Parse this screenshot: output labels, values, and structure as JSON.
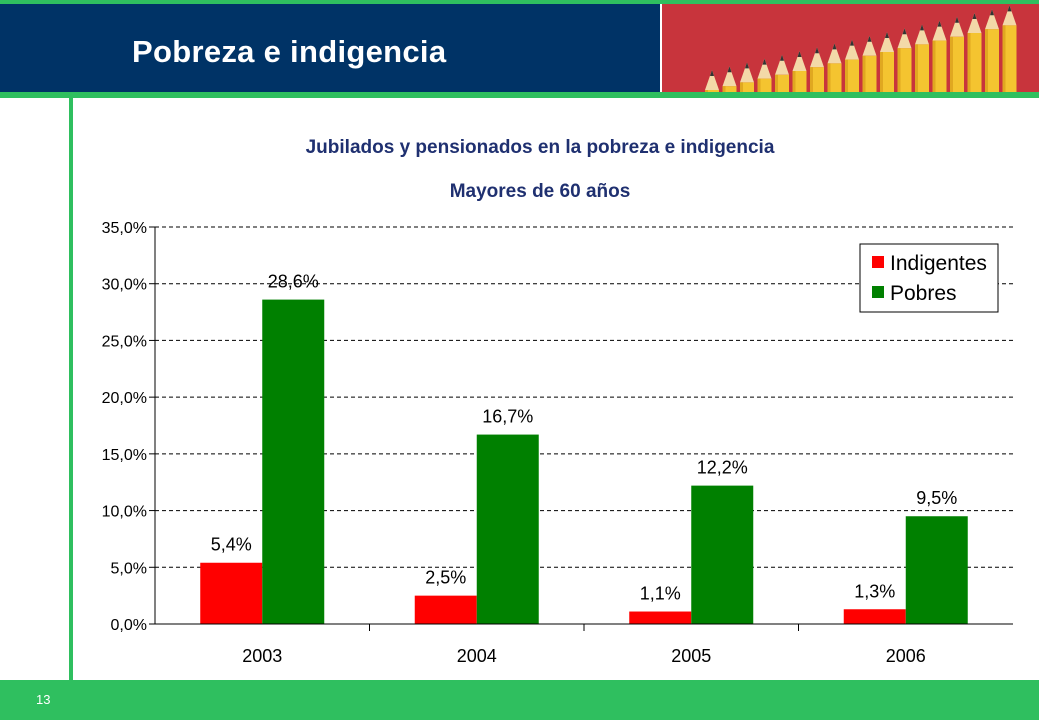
{
  "slide": {
    "title": "Pobreza e indigencia",
    "page_number": "13",
    "colors": {
      "navy": "#003366",
      "green_accent": "#2fbf5f",
      "photo_red": "#c8343c",
      "pencil": "#f4c430"
    }
  },
  "chart_data": {
    "type": "bar",
    "title": "Jubilados y pensionados en la pobreza e indigencia",
    "subtitle": "Mayores de 60 años",
    "categories": [
      "2003",
      "2004",
      "2005",
      "2006"
    ],
    "series": [
      {
        "name": "Indigentes",
        "color": "#ff0000",
        "values": [
          5.4,
          2.5,
          1.1,
          1.3
        ],
        "labels": [
          "5,4%",
          "2,5%",
          "1,1%",
          "1,3%"
        ]
      },
      {
        "name": "Pobres",
        "color": "#008000",
        "values": [
          28.6,
          16.7,
          12.2,
          9.5
        ],
        "labels": [
          "28,6%",
          "16,7%",
          "12,2%",
          "9,5%"
        ]
      }
    ],
    "ylim": [
      0,
      35
    ],
    "yticks": [
      0,
      5,
      10,
      15,
      20,
      25,
      30,
      35
    ],
    "ytick_labels": [
      "0,0%",
      "5,0%",
      "10,0%",
      "15,0%",
      "20,0%",
      "25,0%",
      "30,0%",
      "35,0%"
    ],
    "grid": true,
    "legend": "top-right",
    "xlabel": "",
    "ylabel": ""
  }
}
